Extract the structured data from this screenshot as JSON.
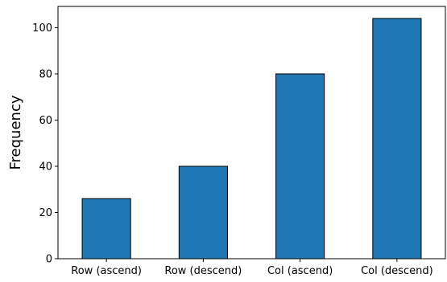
{
  "chart_data": {
    "type": "bar",
    "title": "",
    "xlabel": "",
    "ylabel": "Frequency",
    "categories": [
      "Row (ascend)",
      "Row (descend)",
      "Col (ascend)",
      "Col (descend)"
    ],
    "values": [
      26,
      40,
      80,
      104
    ],
    "ylim": [
      0,
      109.2
    ],
    "yticks": [
      0,
      20,
      40,
      60,
      80,
      100
    ],
    "grid": false,
    "legend": "none",
    "bar_color": "#1f77b4",
    "edge_color": "#000000"
  }
}
